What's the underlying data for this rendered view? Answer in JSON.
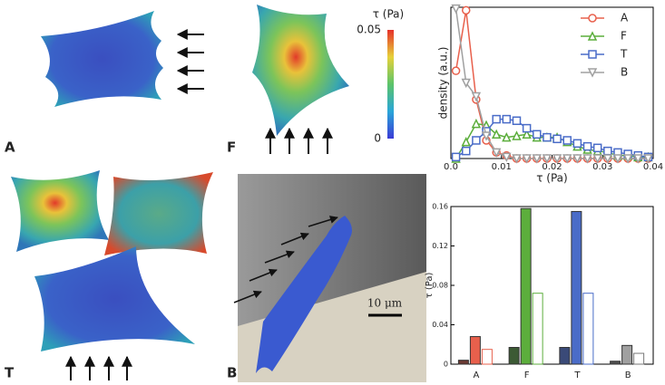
{
  "chart_data": [
    {
      "type": "line",
      "xlabel": "τ (Pa)",
      "ylabel": "density (a.u.)",
      "x": [
        0.001,
        0.003,
        0.005,
        0.007,
        0.009,
        0.011,
        0.013,
        0.015,
        0.017,
        0.019,
        0.021,
        0.023,
        0.025,
        0.027,
        0.029,
        0.031,
        0.033,
        0.035,
        0.037,
        0.039
      ],
      "xlim": [
        0,
        0.04
      ],
      "xticks": [
        {
          "value": 0,
          "label": "0.0"
        },
        0.01,
        0.02,
        0.03,
        0.04
      ],
      "ylim": [
        0,
        1
      ],
      "legend": "upper right",
      "series": [
        {
          "name": "A",
          "color": "#e8604c",
          "marker": "circle",
          "values": [
            0.58,
            0.98,
            0.39,
            0.12,
            0.04,
            0.02,
            0,
            0,
            0,
            0,
            0,
            0,
            0,
            0,
            0,
            0,
            0,
            0,
            0,
            0
          ]
        },
        {
          "name": "F",
          "color": "#5cae3c",
          "marker": "triangle-up",
          "values": [
            0,
            0.11,
            0.23,
            0.22,
            0.16,
            0.14,
            0.15,
            0.16,
            0.14,
            0.14,
            0.14,
            0.11,
            0.08,
            0.06,
            0.05,
            0.04,
            0.02,
            0.02,
            0.01,
            0.01
          ]
        },
        {
          "name": "T",
          "color": "#4a6cc8",
          "marker": "square",
          "values": [
            0.01,
            0.05,
            0.12,
            0.18,
            0.26,
            0.26,
            0.25,
            0.2,
            0.16,
            0.14,
            0.13,
            0.12,
            0.1,
            0.08,
            0.07,
            0.05,
            0.04,
            0.03,
            0.02,
            0.01
          ]
        },
        {
          "name": "B",
          "color": "#a0a0a0",
          "marker": "triangle-down",
          "values": [
            0.99,
            0.5,
            0.41,
            0.15,
            0.04,
            0.01,
            0,
            0,
            0,
            0,
            0,
            0,
            0,
            0,
            0,
            0,
            0,
            0,
            0,
            0
          ]
        }
      ]
    },
    {
      "type": "bar",
      "ylabel": "τ (Pa)",
      "categories": [
        "A",
        "F",
        "T",
        "B"
      ],
      "ylim": [
        0,
        0.16
      ],
      "yticks": [
        0,
        0.04,
        0.08,
        0.12,
        0.16
      ],
      "series": [
        {
          "colors": [
            "#6b3a33",
            "#3c5a34",
            "#3a4a78",
            "#505050"
          ],
          "edgecolors": [
            "#333333",
            "#333333",
            "#333333",
            "#333333"
          ],
          "values": [
            0.004,
            0.017,
            0.017,
            0.003
          ]
        },
        {
          "colors": [
            "#e8604c",
            "#5cae3c",
            "#4a6cc8",
            "#a0a0a0"
          ],
          "edgecolors": [
            "#333333",
            "#333333",
            "#333333",
            "#333333"
          ],
          "values": [
            0.028,
            0.158,
            0.155,
            0.019
          ]
        },
        {
          "colors": [
            "#ffffff",
            "#ffffff",
            "#ffffff",
            "#ffffff"
          ],
          "edgecolors": [
            "#e8604c",
            "#5cae3c",
            "#4a6cc8",
            "#777777"
          ],
          "values": [
            0.015,
            0.072,
            0.072,
            0.011
          ]
        }
      ]
    }
  ],
  "panels": {
    "labels": [
      "A",
      "F",
      "T",
      "B"
    ],
    "colorbar": {
      "title": "τ (Pa)",
      "lim": [
        0,
        0.05
      ],
      "ticks": [
        0,
        0.05
      ]
    },
    "scale_bar": "10 μm"
  }
}
